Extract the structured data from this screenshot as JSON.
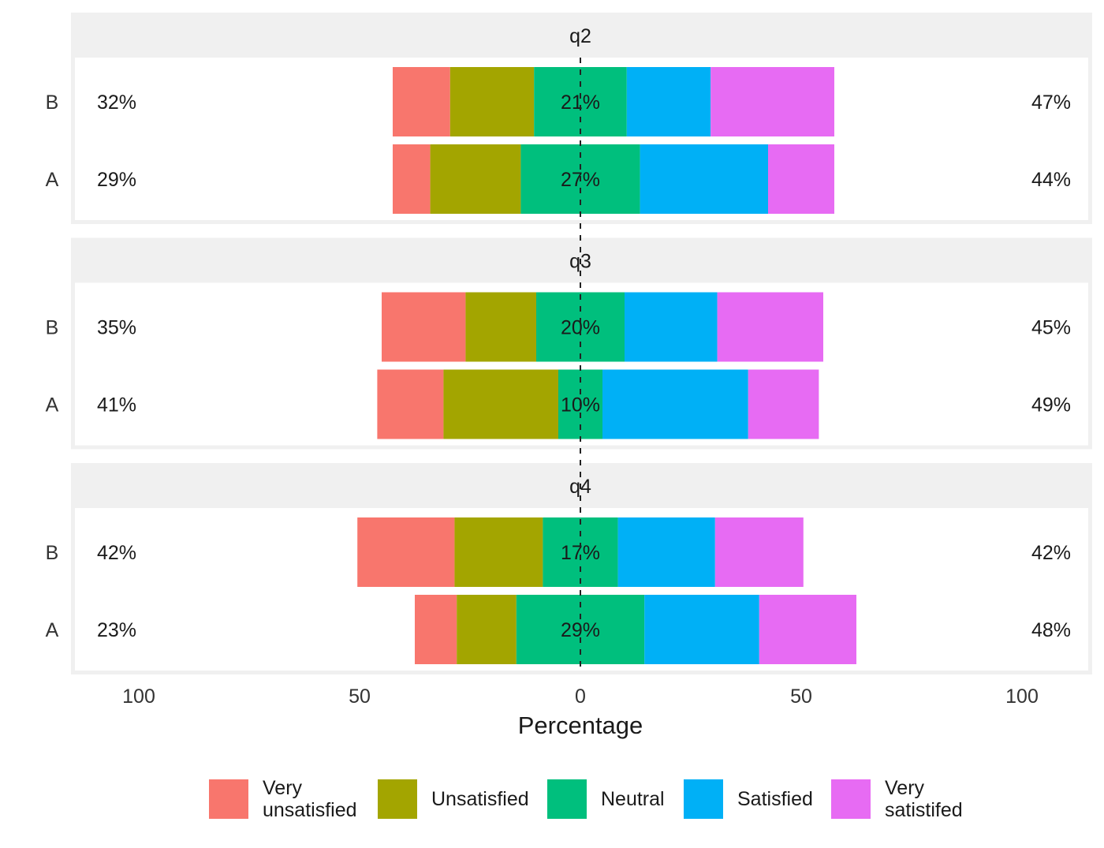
{
  "chart_data": {
    "type": "bar",
    "subtype": "diverging-stacked-horizontal-likert",
    "xlabel": "Percentage",
    "x_ticks": [
      100,
      50,
      0,
      50,
      100
    ],
    "xlim": [
      -100,
      100
    ],
    "grid": false,
    "legend_position": "bottom",
    "levels": [
      "Very\nunsatisfied",
      "Unsatisfied",
      "Neutral",
      "Satisfied",
      "Very\nsatistifed"
    ],
    "colors": [
      "#F8766D",
      "#A3A500",
      "#00BF7D",
      "#00B0F6",
      "#E76BF3"
    ],
    "panels": [
      {
        "title": "q2",
        "groups": [
          {
            "label": "B",
            "values": [
              13,
              19,
              21,
              19,
              28
            ],
            "left_label": "32%",
            "neutral_label": "21%",
            "right_label": "47%"
          },
          {
            "label": "A",
            "values": [
              8.5,
              20.5,
              27,
              29,
              15
            ],
            "left_label": "29%",
            "neutral_label": "27%",
            "right_label": "44%"
          }
        ]
      },
      {
        "title": "q3",
        "groups": [
          {
            "label": "B",
            "values": [
              19,
              16,
              20,
              21,
              24
            ],
            "left_label": "35%",
            "neutral_label": "20%",
            "right_label": "45%"
          },
          {
            "label": "A",
            "values": [
              15,
              26,
              10,
              33,
              16
            ],
            "left_label": "41%",
            "neutral_label": "10%",
            "right_label": "49%"
          }
        ]
      },
      {
        "title": "q4",
        "groups": [
          {
            "label": "B",
            "values": [
              22,
              20,
              17,
              22,
              20
            ],
            "left_label": "42%",
            "neutral_label": "17%",
            "right_label": "42%"
          },
          {
            "label": "A",
            "values": [
              9.5,
              13.5,
              29,
              26,
              22
            ],
            "left_label": "23%",
            "neutral_label": "29%",
            "right_label": "48%"
          }
        ]
      }
    ]
  }
}
